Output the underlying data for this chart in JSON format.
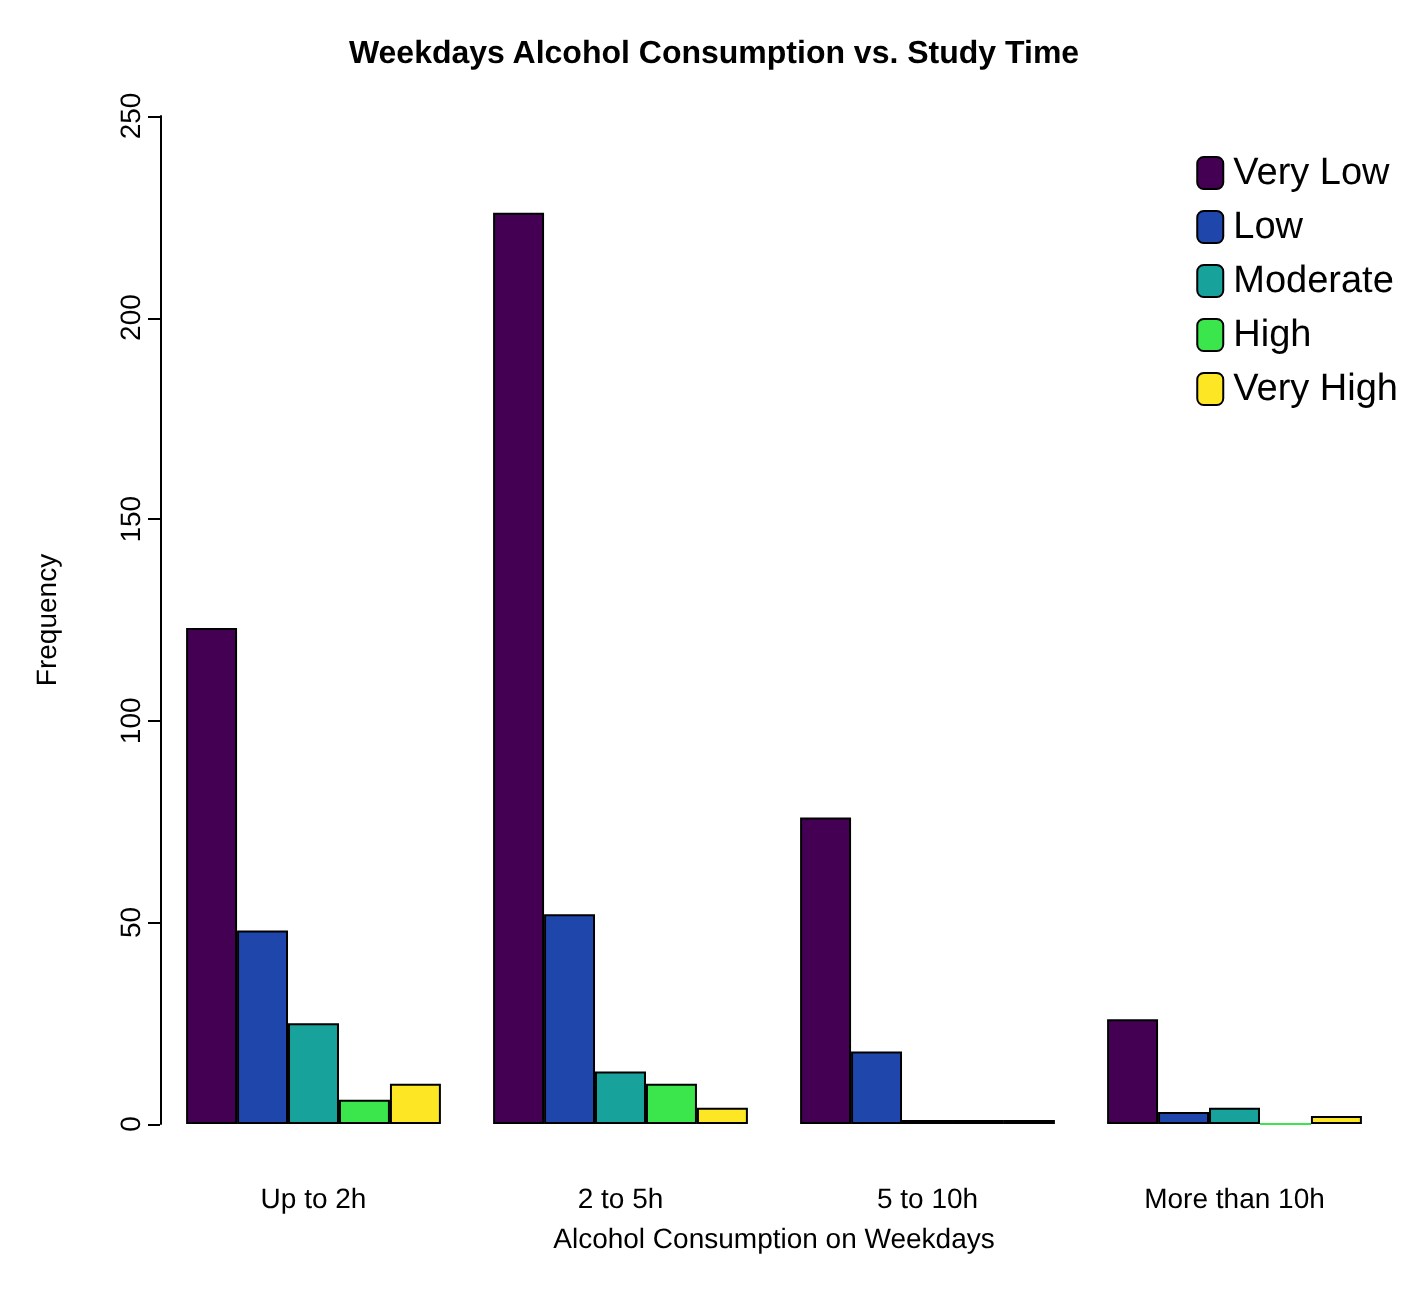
{
  "chart_data": {
    "type": "bar",
    "title": "Weekdays Alcohol Consumption vs. Study Time",
    "xlabel": "Alcohol Consumption on Weekdays",
    "ylabel": "Frequency",
    "categories": [
      "Up to 2h",
      "2 to 5h",
      "5 to 10h",
      "More than 10h"
    ],
    "series": [
      {
        "name": "Very Low",
        "color": "#440154",
        "values": [
          123,
          226,
          76,
          26
        ]
      },
      {
        "name": "Low",
        "color": "#1f47ab",
        "values": [
          48,
          52,
          18,
          3
        ]
      },
      {
        "name": "Moderate",
        "color": "#17a29b",
        "values": [
          25,
          13,
          1,
          4
        ]
      },
      {
        "name": "High",
        "color": "#3ae64b",
        "values": [
          6,
          10,
          1,
          0
        ]
      },
      {
        "name": "Very High",
        "color": "#fde725",
        "values": [
          10,
          4,
          1,
          2
        ]
      }
    ],
    "ylim": [
      0,
      250
    ],
    "yticks": [
      0,
      50,
      100,
      150,
      200,
      250
    ],
    "grid": false,
    "legend": "top right"
  }
}
